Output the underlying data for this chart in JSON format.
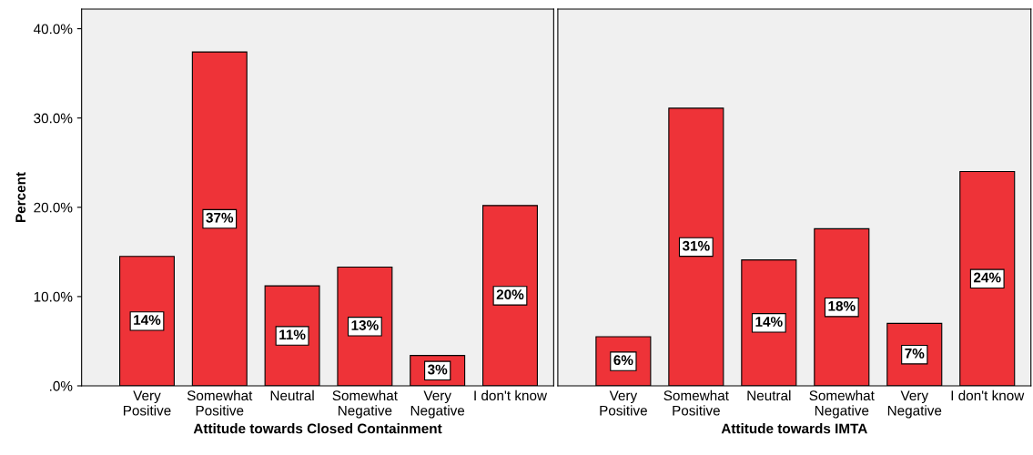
{
  "chart_data": [
    {
      "type": "bar",
      "xlabel": "Attitude towards Closed Containment",
      "ylabel": "Percent",
      "categories": [
        "Very\nPositive",
        "Somewhat\nPositive",
        "Neutral",
        "Somewhat\nNegative",
        "Very\nNegative",
        "I don't know"
      ],
      "values": [
        14.5,
        37.4,
        11.2,
        13.3,
        3.4,
        20.2
      ],
      "value_labels": [
        "14%",
        "37%",
        "11%",
        "13%",
        "3%",
        "20%"
      ],
      "color": "#ee3338",
      "ylim": [
        0,
        42.2
      ],
      "yticks": [
        {
          "value": 0,
          "label": ".0%"
        },
        {
          "value": 10,
          "label": "10.0%"
        },
        {
          "value": 20,
          "label": "20.0%"
        },
        {
          "value": 30,
          "label": "30.0%"
        },
        {
          "value": 40,
          "label": "40.0%"
        }
      ],
      "grid": false,
      "legend": false
    },
    {
      "type": "bar",
      "xlabel": "Attitude towards IMTA",
      "categories": [
        "Very\nPositive",
        "Somewhat\nPositive",
        "Neutral",
        "Somewhat\nNegative",
        "Very\nNegative",
        "I don't know"
      ],
      "values": [
        5.5,
        31.1,
        14.1,
        17.6,
        7.0,
        24.0
      ],
      "value_labels": [
        "6%",
        "31%",
        "14%",
        "18%",
        "7%",
        "24%"
      ],
      "color": "#ee3338",
      "ylim": [
        0,
        42.2
      ],
      "tick_labels": "x",
      "grid": false,
      "legend": false
    }
  ]
}
